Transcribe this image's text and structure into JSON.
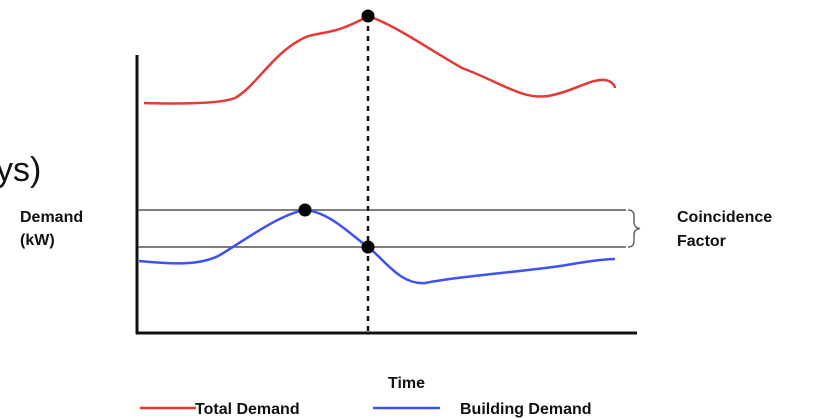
{
  "fragment_text": "ys)",
  "y_label": {
    "line1": "Demand",
    "line2": "(kW)"
  },
  "x_label": "Time",
  "bracket_label": {
    "line1": "Coincidence",
    "line2": "Factor"
  },
  "legend": [
    {
      "label": "Total Demand",
      "color": "#e53935"
    },
    {
      "label": "Building Demand",
      "color": "#3f51f5"
    }
  ],
  "colors": {
    "axis": "#111111",
    "reference_lines": "#555555",
    "total_demand": "#e53935",
    "building_demand": "#3f51f5",
    "markers": "#000000"
  }
}
